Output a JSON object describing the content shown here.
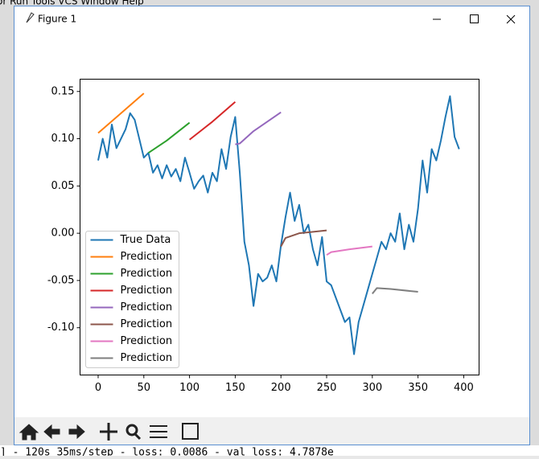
{
  "window": {
    "title": "Figure 1"
  },
  "background": {
    "menu": "or   Run   Tools   VCS   Window   Help",
    "console": "] - 120s 35ms/step - loss: 0.0086 - val_loss: 4.7878e"
  },
  "chart_data": {
    "type": "line",
    "xlim": [
      -19.8,
      416.8
    ],
    "ylim": [
      -0.15,
      0.163
    ],
    "xticks": [
      0,
      50,
      100,
      150,
      200,
      250,
      300,
      350,
      400
    ],
    "yticks": [
      {
        "value": -0.1,
        "label": "-0.10"
      },
      {
        "value": -0.05,
        "label": "-0.05"
      },
      {
        "value": 0,
        "label": "0.00"
      },
      {
        "value": 0.05,
        "label": "0.05"
      },
      {
        "value": 0.1,
        "label": "0.10"
      },
      {
        "value": 0.15,
        "label": "0.15"
      }
    ],
    "legend": "lower left",
    "series": [
      {
        "name": "True Data",
        "color": "#1f77b4",
        "x": [
          0,
          5,
          10,
          15,
          20,
          25,
          30,
          35,
          40,
          45,
          50,
          55,
          60,
          65,
          70,
          75,
          80,
          85,
          90,
          95,
          100,
          105,
          110,
          115,
          120,
          125,
          130,
          135,
          140,
          145,
          150,
          155,
          160,
          165,
          170,
          175,
          180,
          185,
          190,
          195,
          200,
          205,
          210,
          215,
          220,
          225,
          230,
          235,
          240,
          245,
          250,
          255,
          260,
          265,
          270,
          275,
          280,
          285,
          290,
          295,
          300,
          305,
          310,
          315,
          320,
          325,
          330,
          335,
          340,
          345,
          350,
          355,
          360,
          365,
          370,
          375,
          380,
          385,
          390,
          395
        ],
        "values": [
          0.077,
          0.1,
          0.08,
          0.115,
          0.09,
          0.1,
          0.11,
          0.127,
          0.12,
          0.1,
          0.08,
          0.085,
          0.064,
          0.072,
          0.058,
          0.072,
          0.06,
          0.068,
          0.055,
          0.08,
          0.064,
          0.047,
          0.055,
          0.061,
          0.043,
          0.064,
          0.055,
          0.089,
          0.068,
          0.102,
          0.123,
          0.064,
          -0.009,
          -0.034,
          -0.077,
          -0.043,
          -0.051,
          -0.047,
          -0.034,
          -0.051,
          -0.013,
          0.017,
          0.043,
          0.013,
          0.03,
          0.0,
          0.009,
          -0.017,
          -0.034,
          -0.004,
          -0.051,
          -0.055,
          -0.068,
          -0.081,
          -0.094,
          -0.089,
          -0.128,
          -0.094,
          -0.077,
          -0.06,
          -0.043,
          -0.026,
          -0.009,
          -0.017,
          0.0,
          -0.009,
          0.021,
          -0.017,
          0.009,
          -0.009,
          0.026,
          0.077,
          0.043,
          0.089,
          0.077,
          0.098,
          0.123,
          0.145,
          0.102,
          0.089
        ]
      },
      {
        "name": "Prediction",
        "color": "#ff7f0e",
        "x": [
          0,
          25,
          50
        ],
        "values": [
          0.106,
          0.127,
          0.148
        ]
      },
      {
        "name": "Prediction",
        "color": "#2ca02c",
        "x": [
          55,
          75,
          100
        ],
        "values": [
          0.085,
          0.098,
          0.117
        ]
      },
      {
        "name": "Prediction",
        "color": "#d62728",
        "x": [
          100,
          125,
          150
        ],
        "values": [
          0.099,
          0.118,
          0.139
        ]
      },
      {
        "name": "Prediction",
        "color": "#9467bd",
        "x": [
          150,
          155,
          170,
          200
        ],
        "values": [
          0.094,
          0.095,
          0.108,
          0.128
        ]
      },
      {
        "name": "Prediction",
        "color": "#8c564b",
        "x": [
          200,
          205,
          220,
          250
        ],
        "values": [
          -0.014,
          -0.005,
          0.0,
          0.003
        ]
      },
      {
        "name": "Prediction",
        "color": "#e377c2",
        "x": [
          250,
          255,
          275,
          300
        ],
        "values": [
          -0.023,
          -0.02,
          -0.017,
          -0.014
        ]
      },
      {
        "name": "Prediction",
        "color": "#7f7f7f",
        "x": [
          300,
          305,
          320,
          350
        ],
        "values": [
          -0.064,
          -0.058,
          -0.059,
          -0.062
        ]
      }
    ]
  }
}
